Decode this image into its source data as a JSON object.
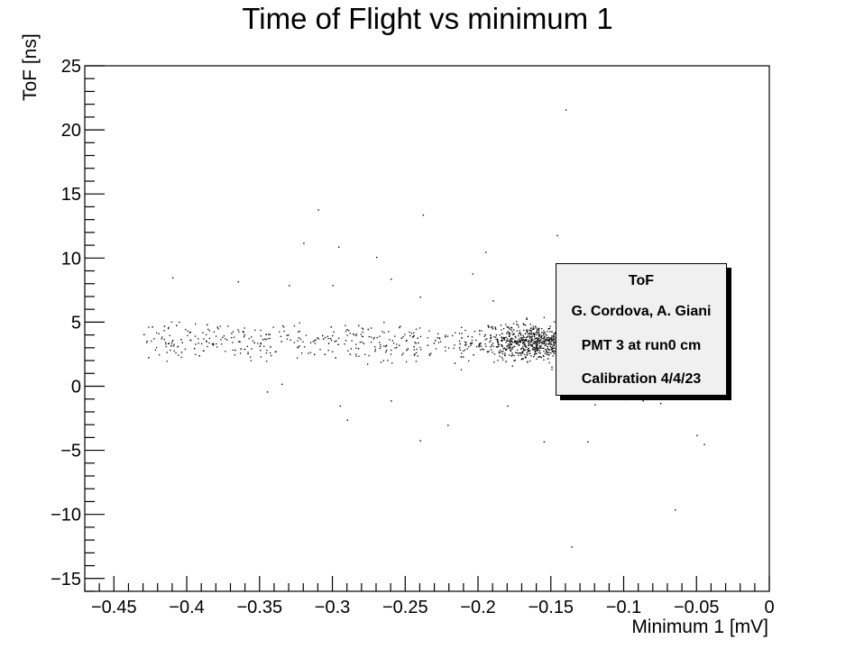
{
  "chart_data": {
    "type": "scatter",
    "title": "Time of Flight vs minimum 1",
    "xlabel": "Minimum 1 [mV]",
    "ylabel": "ToF [ns]",
    "xlim": [
      -0.47,
      0
    ],
    "ylim": [
      -16,
      25
    ],
    "x_ticks": [
      -0.45,
      -0.4,
      -0.35,
      -0.3,
      -0.25,
      -0.2,
      -0.15,
      -0.1,
      -0.05,
      0
    ],
    "x_tick_labels": [
      "−0.45",
      "−0.4",
      "−0.35",
      "−0.3",
      "−0.25",
      "−0.2",
      "−0.15",
      "−0.1",
      "−0.05",
      "0"
    ],
    "y_ticks": [
      -15,
      -10,
      -5,
      0,
      5,
      10,
      15,
      20,
      25
    ],
    "y_tick_labels": [
      "−15",
      "−10",
      "−5",
      "0",
      "5",
      "10",
      "15",
      "20",
      "25"
    ],
    "grid": false,
    "marker_color": "#000000",
    "cluster": {
      "x_range": [
        -0.43,
        -0.06
      ],
      "y_center": 3.5,
      "y_spread": 1.4,
      "densest_near_x": -0.16
    },
    "outliers": [
      {
        "x": -0.14,
        "y": 21.6
      },
      {
        "x": -0.31,
        "y": 13.8
      },
      {
        "x": -0.238,
        "y": 13.4
      },
      {
        "x": -0.146,
        "y": 11.8
      },
      {
        "x": -0.32,
        "y": 11.2
      },
      {
        "x": -0.296,
        "y": 10.9
      },
      {
        "x": -0.27,
        "y": 10.1
      },
      {
        "x": -0.195,
        "y": 10.5
      },
      {
        "x": -0.41,
        "y": 8.5
      },
      {
        "x": -0.26,
        "y": 8.4
      },
      {
        "x": -0.204,
        "y": 8.8
      },
      {
        "x": -0.365,
        "y": 8.2
      },
      {
        "x": -0.33,
        "y": 7.9
      },
      {
        "x": -0.3,
        "y": 7.9
      },
      {
        "x": -0.24,
        "y": 7.0
      },
      {
        "x": -0.19,
        "y": 6.7
      },
      {
        "x": -0.295,
        "y": -1.5
      },
      {
        "x": -0.335,
        "y": 0.2
      },
      {
        "x": -0.345,
        "y": -0.4
      },
      {
        "x": -0.26,
        "y": -1.1
      },
      {
        "x": -0.29,
        "y": -2.6
      },
      {
        "x": -0.221,
        "y": -3.0
      },
      {
        "x": -0.24,
        "y": -4.2
      },
      {
        "x": -0.155,
        "y": -4.3
      },
      {
        "x": -0.125,
        "y": -4.3
      },
      {
        "x": -0.18,
        "y": -1.5
      },
      {
        "x": -0.1,
        "y": -1.0
      },
      {
        "x": -0.075,
        "y": -1.3
      },
      {
        "x": -0.05,
        "y": -3.8
      },
      {
        "x": -0.045,
        "y": -4.5
      },
      {
        "x": -0.065,
        "y": -9.6
      },
      {
        "x": -0.136,
        "y": -12.5
      },
      {
        "x": -0.12,
        "y": -1.4
      },
      {
        "x": -0.087,
        "y": -1.1
      }
    ]
  },
  "legend": {
    "title": "ToF",
    "lines": [
      "G. Cordova, A. Giani",
      "PMT 3 at run0 cm",
      "Calibration 4/4/23"
    ]
  }
}
